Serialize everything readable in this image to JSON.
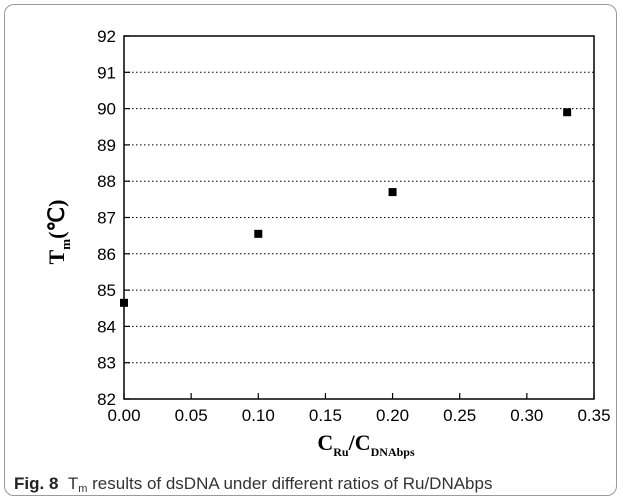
{
  "figure": {
    "label": "Fig. 8",
    "caption_pre": "T",
    "caption_sub": "m",
    "caption_post": " results of dsDNA under different ratios of Ru/DNAbps"
  },
  "chart_data": {
    "type": "scatter",
    "title": "",
    "xlabel": {
      "main": "C",
      "sub1": "Ru",
      "slash": "/C",
      "sub2": "DNAbps"
    },
    "ylabel": {
      "main": "T",
      "sub": "m",
      "unit": "(℃)"
    },
    "xlim": [
      0.0,
      0.35
    ],
    "ylim": [
      82,
      92
    ],
    "xticks": [
      "0.00",
      "0.05",
      "0.10",
      "0.15",
      "0.20",
      "0.25",
      "0.30",
      "0.35"
    ],
    "yticks": [
      "82",
      "83",
      "84",
      "85",
      "86",
      "87",
      "88",
      "89",
      "90",
      "91",
      "92"
    ],
    "grid": "horizontal-dotted",
    "x": [
      0.0,
      0.1,
      0.2,
      0.33
    ],
    "y": [
      84.65,
      86.55,
      87.7,
      89.9
    ],
    "marker_color": "#000000"
  }
}
